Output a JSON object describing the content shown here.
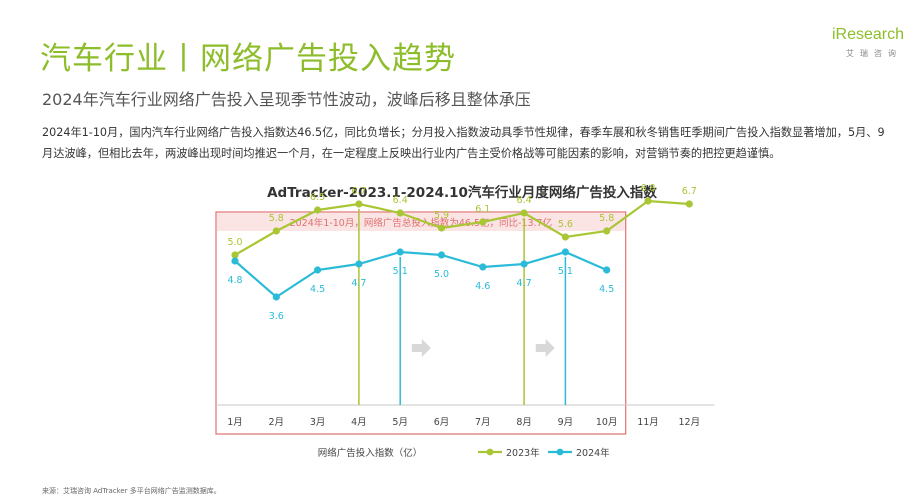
{
  "header": {
    "title": "汽车行业丨网络广告投入趋势",
    "subtitle": "2024年汽车行业网络广告投入呈现季节性波动，波峰后移且整体承压"
  },
  "logo": {
    "main": "iResearch",
    "sub": "艾瑞咨询"
  },
  "summary": "2024年1-10月，国内汽车行业网络广告投入指数达46.5亿，同比负增长；分月投入指数波动具季节性规律，春季车展和秋冬销售旺季期间广告投入指数显著增加，5月、9月达波峰，但相比去年，两波峰出现时间均推迟一个月，在一定程度上反映出行业内广告主受价格战等可能因素的影响，对营销节奏的把控更趋谨慎。",
  "footer": {
    "source": "来源：艾瑞咨询 AdTracker 多平台网络广告监测数据库。"
  },
  "colors": {
    "series2023": "#a9c634",
    "series2024": "#2bbbd8",
    "highlight_border": "#e07070",
    "highlight_fill": "#fbe4e4",
    "title": "#8dbd2a"
  },
  "chart_data": {
    "type": "line",
    "title": "AdTracker-2023.1-2024.10汽车行业月度网络广告投入指数",
    "categories": [
      "1月",
      "2月",
      "3月",
      "4月",
      "5月",
      "6月",
      "7月",
      "8月",
      "9月",
      "10月",
      "11月",
      "12月"
    ],
    "series": [
      {
        "name": "2023年",
        "values": [
          5.0,
          5.8,
          6.5,
          6.7,
          6.4,
          5.9,
          6.1,
          6.4,
          5.6,
          5.8,
          6.8,
          6.7
        ]
      },
      {
        "name": "2024年",
        "values": [
          4.8,
          3.6,
          4.5,
          4.7,
          5.1,
          5.0,
          4.6,
          4.7,
          5.1,
          4.5,
          null,
          null
        ]
      }
    ],
    "ylabel": "网络广告投入指数（亿）",
    "ylim": [
      0,
      8
    ],
    "annotation": "2024年1-10月，网络广告总投入指数为46.5亿，同比-13.7亿",
    "peak_markers": [
      {
        "series": "2023年",
        "month": "4月"
      },
      {
        "series": "2024年",
        "month": "5月"
      },
      {
        "series": "2023年",
        "month": "8月"
      },
      {
        "series": "2024年",
        "month": "9月"
      }
    ],
    "legend_position": "bottom"
  }
}
